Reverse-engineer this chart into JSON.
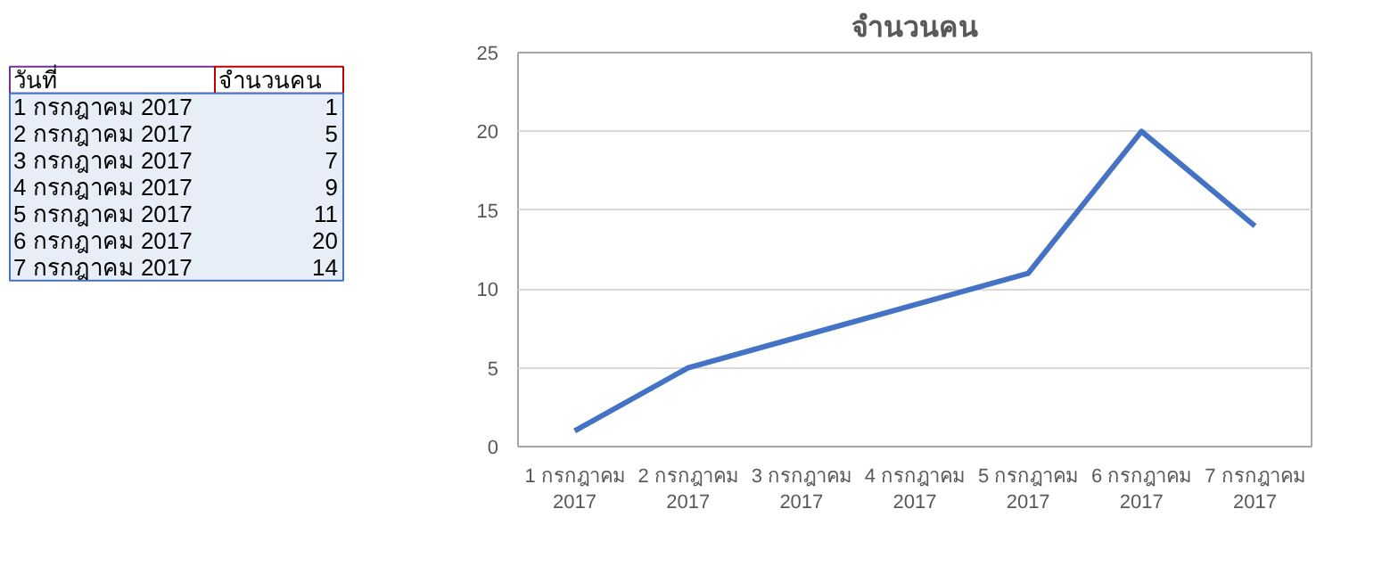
{
  "chart_data": [
    {
      "type": "other",
      "annotations": [
        "วันที่",
        "จำนวนคน"
      ],
      "categories": [
        "1 กรกฎาคม 2017",
        "2 กรกฎาคม 2017",
        "3 กรกฎาคม 2017",
        "4 กรกฎาคม 2017",
        "5 กรกฎาคม 2017",
        "6 กรกฎาคม 2017",
        "7 กรกฎาคม 2017"
      ],
      "values": [
        1,
        5,
        7,
        9,
        11,
        20,
        14
      ],
      "data_labels": true
    },
    {
      "type": "line",
      "title": "จำนวนคน",
      "categories": [
        "1 กรกฎาคม 2017",
        "2 กรกฎาคม 2017",
        "3 กรกฎาคม 2017",
        "4 กรกฎาคม 2017",
        "5 กรกฎาคม 2017",
        "6 กรกฎาคม 2017",
        "7 กรกฎาคม 2017"
      ],
      "series": [
        {
          "color": "#4472c4",
          "values": [
            1,
            5,
            7,
            9,
            11,
            20,
            14
          ]
        }
      ],
      "ylim": [
        0,
        25
      ],
      "yticks": [
        0,
        5,
        10,
        15,
        20,
        25
      ],
      "grid": "y",
      "line_style": "solid"
    }
  ]
}
